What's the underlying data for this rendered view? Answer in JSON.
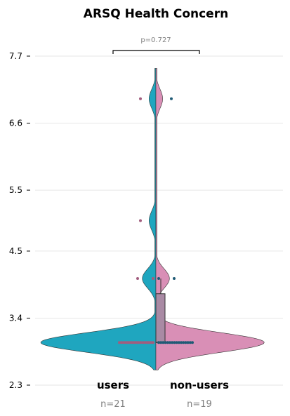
{
  "chart_data": {
    "type": "violin",
    "title": "ARSQ Health Concern",
    "ylim": [
      2.3,
      8.0
    ],
    "yticks": [
      "2.3",
      "3.4",
      "4.5",
      "5.5",
      "6.6",
      "7.7"
    ],
    "grid": true,
    "categories": [
      "users",
      "non-users"
    ],
    "counts": [
      "n=21",
      "n=19"
    ],
    "p_value": "p=0.727",
    "colors": {
      "users": "#1fa6bf",
      "non-users": "#d98fb6",
      "users_points": "#a25d7e",
      "non_users_points": "#1f5a75"
    },
    "series": [
      {
        "name": "users",
        "points": [
          3.0,
          3.0,
          3.0,
          3.0,
          3.0,
          3.0,
          3.0,
          3.0,
          3.0,
          3.0,
          3.0,
          3.0,
          3.0,
          3.0,
          3.0,
          3.0,
          3.0,
          4.05,
          4.05,
          5.0,
          7.0
        ]
      },
      {
        "name": "non-users",
        "points": [
          3.0,
          3.0,
          3.0,
          3.0,
          3.0,
          3.0,
          3.0,
          3.0,
          3.0,
          3.0,
          3.0,
          3.0,
          3.0,
          3.0,
          3.0,
          3.0,
          4.05,
          4.05,
          7.0
        ]
      }
    ],
    "box": {
      "min": 3.0,
      "q1": 3.0,
      "median": 3.0,
      "q3": 3.8,
      "max": 4.05
    }
  }
}
